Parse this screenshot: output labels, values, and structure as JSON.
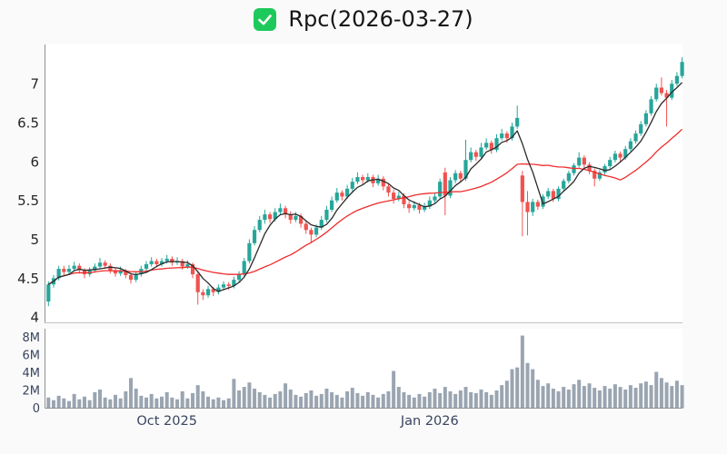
{
  "header": {
    "title": "Rpc(2026-03-27)",
    "checkbox_checked": true
  },
  "colors": {
    "page_bg": "#fafafa",
    "plot_bg": "#ffffff",
    "up": "#26a69a",
    "down": "#ef5350",
    "ma_fast": "#2b2b2b",
    "ma_slow": "#ee2c2c",
    "volume_bar": "#9aa5b1",
    "checkbox_green": "#1ec95c",
    "axis_label_price": "#262626",
    "axis_label_secondary": "#39455e",
    "spine": "#8f8f8f",
    "spine_light": "#c2c2c2"
  },
  "chart_data": {
    "type": "candlestick",
    "title": "Rpc(2026-03-27)",
    "legend": [
      {
        "label": "Rpc(2026-03-27)",
        "checked": true
      }
    ],
    "layout": {
      "grid": false,
      "panels": [
        "price",
        "volume"
      ],
      "legend_position": "top-center"
    },
    "price_axis": {
      "ticks": [
        {
          "label": "4",
          "value": 4
        },
        {
          "label": "4.5",
          "value": 4.5
        },
        {
          "label": "5",
          "value": 5
        },
        {
          "label": "5.5",
          "value": 5.5
        },
        {
          "label": "6",
          "value": 6
        },
        {
          "label": "6.5",
          "value": 6.5
        },
        {
          "label": "7",
          "value": 7
        }
      ],
      "range": [
        3.92,
        7.5
      ]
    },
    "volume_axis": {
      "ticks": [
        {
          "label": "0",
          "value": 0
        },
        {
          "label": "2M",
          "value": 2
        },
        {
          "label": "4M",
          "value": 4
        },
        {
          "label": "6M",
          "value": 6
        },
        {
          "label": "8M",
          "value": 8
        }
      ],
      "range_millions": [
        0,
        9.0
      ]
    },
    "x_axis": {
      "tick_labels": [
        {
          "text": "Oct 2025",
          "candle_index": 23
        },
        {
          "text": "Jan 2026",
          "candle_index": 74
        }
      ]
    },
    "overlays": [
      {
        "name": "fast-moving-average",
        "window": 5,
        "color": "#2b2b2b"
      },
      {
        "name": "slow-moving-average",
        "window": 20,
        "color": "#ee2c2c"
      }
    ],
    "candles_ohlc": [
      [
        4.2,
        4.46,
        4.14,
        4.42
      ],
      [
        4.42,
        4.54,
        4.38,
        4.5
      ],
      [
        4.5,
        4.66,
        4.47,
        4.62
      ],
      [
        4.62,
        4.66,
        4.53,
        4.58
      ],
      [
        4.58,
        4.67,
        4.55,
        4.62
      ],
      [
        4.62,
        4.71,
        4.59,
        4.66
      ],
      [
        4.66,
        4.69,
        4.56,
        4.6
      ],
      [
        4.6,
        4.63,
        4.5,
        4.55
      ],
      [
        4.55,
        4.64,
        4.52,
        4.6
      ],
      [
        4.6,
        4.69,
        4.57,
        4.65
      ],
      [
        4.65,
        4.76,
        4.62,
        4.7
      ],
      [
        4.7,
        4.73,
        4.62,
        4.66
      ],
      [
        4.66,
        4.69,
        4.56,
        4.6
      ],
      [
        4.6,
        4.63,
        4.52,
        4.56
      ],
      [
        4.56,
        4.65,
        4.53,
        4.6
      ],
      [
        4.6,
        4.62,
        4.5,
        4.54
      ],
      [
        4.54,
        4.57,
        4.43,
        4.48
      ],
      [
        4.48,
        4.58,
        4.45,
        4.55
      ],
      [
        4.55,
        4.66,
        4.52,
        4.62
      ],
      [
        4.62,
        4.72,
        4.59,
        4.68
      ],
      [
        4.68,
        4.77,
        4.65,
        4.72
      ],
      [
        4.72,
        4.75,
        4.64,
        4.68
      ],
      [
        4.68,
        4.76,
        4.65,
        4.72
      ],
      [
        4.72,
        4.8,
        4.69,
        4.75
      ],
      [
        4.75,
        4.78,
        4.66,
        4.7
      ],
      [
        4.7,
        4.77,
        4.67,
        4.72
      ],
      [
        4.72,
        4.75,
        4.61,
        4.65
      ],
      [
        4.65,
        4.73,
        4.62,
        4.68
      ],
      [
        4.68,
        4.7,
        4.5,
        4.55
      ],
      [
        4.55,
        4.57,
        4.16,
        4.32
      ],
      [
        4.32,
        4.36,
        4.22,
        4.28
      ],
      [
        4.28,
        4.4,
        4.25,
        4.36
      ],
      [
        4.36,
        4.39,
        4.27,
        4.32
      ],
      [
        4.32,
        4.42,
        4.29,
        4.38
      ],
      [
        4.38,
        4.46,
        4.35,
        4.42
      ],
      [
        4.42,
        4.45,
        4.35,
        4.4
      ],
      [
        4.4,
        4.52,
        4.37,
        4.48
      ],
      [
        4.48,
        4.59,
        4.45,
        4.55
      ],
      [
        4.55,
        4.76,
        4.52,
        4.72
      ],
      [
        4.72,
        5.0,
        4.69,
        4.95
      ],
      [
        4.95,
        5.17,
        4.92,
        5.12
      ],
      [
        5.12,
        5.3,
        5.09,
        5.25
      ],
      [
        5.25,
        5.38,
        5.2,
        5.32
      ],
      [
        5.32,
        5.35,
        5.21,
        5.26
      ],
      [
        5.26,
        5.4,
        5.23,
        5.35
      ],
      [
        5.35,
        5.46,
        5.32,
        5.4
      ],
      [
        5.4,
        5.43,
        5.27,
        5.32
      ],
      [
        5.32,
        5.36,
        5.2,
        5.25
      ],
      [
        5.25,
        5.35,
        5.22,
        5.3
      ],
      [
        5.3,
        5.33,
        5.15,
        5.2
      ],
      [
        5.2,
        5.24,
        5.07,
        5.12
      ],
      [
        5.12,
        5.15,
        4.95,
        5.06
      ],
      [
        5.06,
        5.19,
        5.03,
        5.15
      ],
      [
        5.15,
        5.3,
        5.12,
        5.25
      ],
      [
        5.25,
        5.43,
        5.22,
        5.38
      ],
      [
        5.38,
        5.55,
        5.35,
        5.5
      ],
      [
        5.5,
        5.66,
        5.47,
        5.6
      ],
      [
        5.6,
        5.63,
        5.5,
        5.55
      ],
      [
        5.55,
        5.7,
        5.52,
        5.65
      ],
      [
        5.65,
        5.79,
        5.62,
        5.74
      ],
      [
        5.74,
        5.86,
        5.71,
        5.8
      ],
      [
        5.8,
        5.83,
        5.71,
        5.76
      ],
      [
        5.76,
        5.85,
        5.73,
        5.8
      ],
      [
        5.8,
        5.83,
        5.67,
        5.72
      ],
      [
        5.72,
        5.83,
        5.69,
        5.78
      ],
      [
        5.78,
        5.81,
        5.63,
        5.68
      ],
      [
        5.68,
        5.71,
        5.55,
        5.6
      ],
      [
        5.6,
        5.64,
        5.46,
        5.52
      ],
      [
        5.52,
        5.61,
        5.49,
        5.56
      ],
      [
        5.56,
        5.59,
        5.4,
        5.45
      ],
      [
        5.45,
        5.49,
        5.34,
        5.4
      ],
      [
        5.4,
        5.49,
        5.37,
        5.44
      ],
      [
        5.44,
        5.47,
        5.33,
        5.38
      ],
      [
        5.38,
        5.47,
        5.35,
        5.42
      ],
      [
        5.42,
        5.55,
        5.39,
        5.5
      ],
      [
        5.5,
        5.6,
        5.47,
        5.55
      ],
      [
        5.55,
        5.78,
        5.52,
        5.74
      ],
      [
        5.86,
        5.92,
        5.31,
        5.56
      ],
      [
        5.56,
        5.8,
        5.53,
        5.76
      ],
      [
        5.76,
        5.89,
        5.72,
        5.85
      ],
      [
        5.85,
        5.88,
        5.74,
        5.78
      ],
      [
        5.78,
        6.28,
        5.75,
        6.02
      ],
      [
        6.02,
        6.18,
        5.99,
        6.12
      ],
      [
        6.12,
        6.15,
        6.01,
        6.06
      ],
      [
        6.06,
        6.24,
        6.03,
        6.18
      ],
      [
        6.18,
        6.3,
        6.15,
        6.24
      ],
      [
        6.24,
        6.27,
        6.1,
        6.15
      ],
      [
        6.15,
        6.35,
        6.12,
        6.3
      ],
      [
        6.3,
        6.42,
        6.27,
        6.36
      ],
      [
        6.36,
        6.39,
        6.24,
        6.3
      ],
      [
        6.3,
        6.5,
        6.27,
        6.45
      ],
      [
        6.45,
        6.72,
        6.42,
        6.56
      ],
      [
        5.82,
        5.88,
        5.04,
        5.48
      ],
      [
        5.48,
        5.62,
        5.05,
        5.35
      ],
      [
        5.35,
        5.52,
        5.3,
        5.48
      ],
      [
        5.48,
        5.51,
        5.38,
        5.42
      ],
      [
        5.42,
        5.58,
        5.39,
        5.55
      ],
      [
        5.55,
        5.66,
        5.52,
        5.62
      ],
      [
        5.62,
        5.65,
        5.48,
        5.52
      ],
      [
        5.52,
        5.68,
        5.49,
        5.65
      ],
      [
        5.65,
        5.78,
        5.62,
        5.75
      ],
      [
        5.75,
        5.88,
        5.72,
        5.85
      ],
      [
        5.85,
        5.98,
        5.82,
        5.95
      ],
      [
        5.95,
        6.12,
        5.92,
        6.05
      ],
      [
        6.05,
        6.08,
        5.92,
        5.96
      ],
      [
        5.96,
        5.99,
        5.84,
        5.88
      ],
      [
        5.88,
        5.91,
        5.68,
        5.78
      ],
      [
        5.78,
        5.89,
        5.75,
        5.86
      ],
      [
        5.86,
        5.97,
        5.83,
        5.94
      ],
      [
        5.94,
        6.06,
        5.91,
        6.02
      ],
      [
        6.02,
        6.14,
        5.99,
        6.1
      ],
      [
        6.1,
        6.13,
        6.0,
        6.05
      ],
      [
        6.05,
        6.2,
        6.02,
        6.16
      ],
      [
        6.16,
        6.3,
        6.13,
        6.26
      ],
      [
        6.26,
        6.4,
        6.23,
        6.36
      ],
      [
        6.36,
        6.52,
        6.33,
        6.48
      ],
      [
        6.48,
        6.66,
        6.45,
        6.62
      ],
      [
        6.62,
        6.84,
        6.59,
        6.8
      ],
      [
        6.8,
        7.0,
        6.77,
        6.95
      ],
      [
        6.95,
        7.08,
        6.85,
        6.88
      ],
      [
        6.88,
        6.92,
        6.45,
        6.82
      ],
      [
        6.82,
        7.05,
        6.79,
        7.0
      ],
      [
        7.0,
        7.15,
        6.97,
        7.1
      ],
      [
        7.1,
        7.34,
        7.07,
        7.28
      ]
    ],
    "volumes_millions": [
      1.2,
      0.9,
      1.4,
      1.1,
      0.8,
      1.6,
      1.0,
      1.3,
      0.9,
      1.8,
      2.1,
      1.2,
      1.0,
      1.5,
      1.1,
      1.9,
      3.4,
      2.2,
      1.4,
      1.2,
      1.6,
      1.1,
      1.3,
      1.8,
      1.2,
      1.0,
      1.9,
      1.1,
      1.7,
      2.6,
      1.9,
      1.3,
      1.0,
      1.2,
      0.9,
      1.1,
      3.3,
      2.0,
      2.4,
      2.9,
      2.2,
      1.8,
      1.5,
      1.2,
      1.6,
      1.9,
      2.8,
      2.1,
      1.5,
      1.3,
      1.7,
      2.0,
      1.4,
      1.6,
      2.2,
      1.8,
      1.5,
      1.2,
      1.9,
      2.3,
      1.7,
      1.4,
      1.8,
      1.5,
      1.2,
      1.6,
      1.9,
      4.2,
      2.4,
      1.8,
      1.5,
      1.2,
      1.6,
      1.3,
      1.8,
      2.2,
      1.7,
      2.4,
      1.9,
      1.6,
      2.0,
      2.4,
      1.8,
      1.7,
      2.1,
      1.8,
      1.5,
      2.0,
      2.6,
      3.1,
      4.4,
      4.6,
      8.2,
      5.1,
      4.4,
      3.2,
      2.5,
      2.8,
      2.2,
      1.9,
      2.4,
      2.1,
      2.7,
      3.2,
      2.5,
      2.8,
      2.3,
      2.0,
      2.5,
      2.2,
      2.7,
      2.4,
      2.1,
      2.6,
      2.3,
      2.8,
      3.0,
      2.6,
      4.1,
      3.4,
      2.9,
      2.5,
      3.1,
      2.6
    ]
  }
}
